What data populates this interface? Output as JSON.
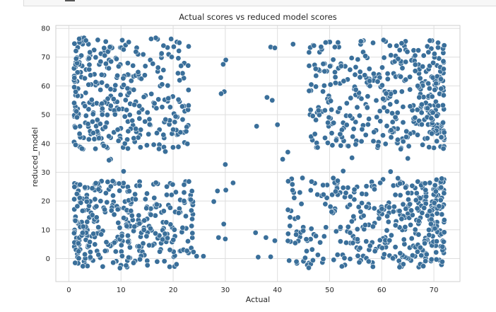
{
  "chart_data": {
    "type": "scatter",
    "title": "Actual scores vs reduced model scores",
    "xlabel": "Actual",
    "ylabel": "reduced_model",
    "xlim": [
      -2.5,
      75
    ],
    "ylim": [
      -8,
      81
    ],
    "xticks": [
      "0",
      "10",
      "20",
      "30",
      "40",
      "50",
      "60",
      "70"
    ],
    "xtick_values": [
      0,
      10,
      20,
      30,
      40,
      50,
      60,
      70
    ],
    "yticks": [
      "0",
      "10",
      "20",
      "30",
      "40",
      "50",
      "60",
      "70",
      "80"
    ],
    "ytick_values": [
      0,
      10,
      20,
      30,
      40,
      50,
      60,
      70,
      80
    ],
    "grid": true,
    "marker_color": "#3a6f9a",
    "background": "#ffffff",
    "clusters": [
      {
        "x_range": [
          1,
          23
        ],
        "y_range": [
          38,
          77
        ],
        "count": 340,
        "density_bias": "left"
      },
      {
        "x_range": [
          1,
          24
        ],
        "y_range": [
          -3,
          27
        ],
        "count": 330,
        "density_bias": "left"
      },
      {
        "x_range": [
          46,
          72
        ],
        "y_range": [
          38,
          76
        ],
        "count": 390,
        "density_bias": "right"
      },
      {
        "x_range": [
          42,
          72
        ],
        "y_range": [
          -3,
          28
        ],
        "count": 380,
        "density_bias": "right"
      }
    ],
    "points": [
      {
        "x": 10.5,
        "y": 30.3
      },
      {
        "x": 30,
        "y": 32.7
      },
      {
        "x": 31.5,
        "y": 26.3
      },
      {
        "x": 36,
        "y": 46
      },
      {
        "x": 38,
        "y": 56
      },
      {
        "x": 39,
        "y": 55
      },
      {
        "x": 38.7,
        "y": 73.5
      },
      {
        "x": 39.5,
        "y": 73.2
      },
      {
        "x": 30.1,
        "y": 69
      },
      {
        "x": 29.6,
        "y": 67.5
      },
      {
        "x": 29.8,
        "y": 58
      },
      {
        "x": 29.2,
        "y": 57.3
      },
      {
        "x": 28.5,
        "y": 23.5
      },
      {
        "x": 27.8,
        "y": 19.8
      },
      {
        "x": 30.1,
        "y": 23.8
      },
      {
        "x": 28.7,
        "y": 7.3
      },
      {
        "x": 29.7,
        "y": 12
      },
      {
        "x": 30,
        "y": 6.8
      },
      {
        "x": 25.8,
        "y": 0.8
      },
      {
        "x": 24.5,
        "y": 0.8
      },
      {
        "x": 35.8,
        "y": 9
      },
      {
        "x": 36.3,
        "y": 0.5
      },
      {
        "x": 38.7,
        "y": 0.6
      },
      {
        "x": 37.8,
        "y": 7.3
      },
      {
        "x": 39.5,
        "y": 6.2
      },
      {
        "x": 41,
        "y": 34.5
      },
      {
        "x": 42,
        "y": 37
      },
      {
        "x": 40,
        "y": 46.5
      },
      {
        "x": 44.8,
        "y": 28
      },
      {
        "x": 52.6,
        "y": 30.4
      },
      {
        "x": 54.3,
        "y": 35
      },
      {
        "x": 61.7,
        "y": 30.2
      },
      {
        "x": 65,
        "y": 34.8
      },
      {
        "x": 46,
        "y": -3.2
      },
      {
        "x": 57.5,
        "y": -1
      },
      {
        "x": 9.8,
        "y": -3.3
      },
      {
        "x": 6.5,
        "y": -2.8
      },
      {
        "x": 1.2,
        "y": -1.5
      },
      {
        "x": 47,
        "y": 74
      },
      {
        "x": 43,
        "y": 74.5
      },
      {
        "x": 56,
        "y": 75.5
      },
      {
        "x": 70.8,
        "y": 75
      },
      {
        "x": 71.5,
        "y": 27.8
      },
      {
        "x": 71.3,
        "y": 20.3
      },
      {
        "x": 18.5,
        "y": 37.2
      },
      {
        "x": 20,
        "y": 44.8
      },
      {
        "x": 22.5,
        "y": 44.2
      },
      {
        "x": 8,
        "y": 34.5
      },
      {
        "x": 7.7,
        "y": 34.2
      },
      {
        "x": 1.3,
        "y": 39.5
      },
      {
        "x": 2.5,
        "y": 38.2
      }
    ]
  }
}
